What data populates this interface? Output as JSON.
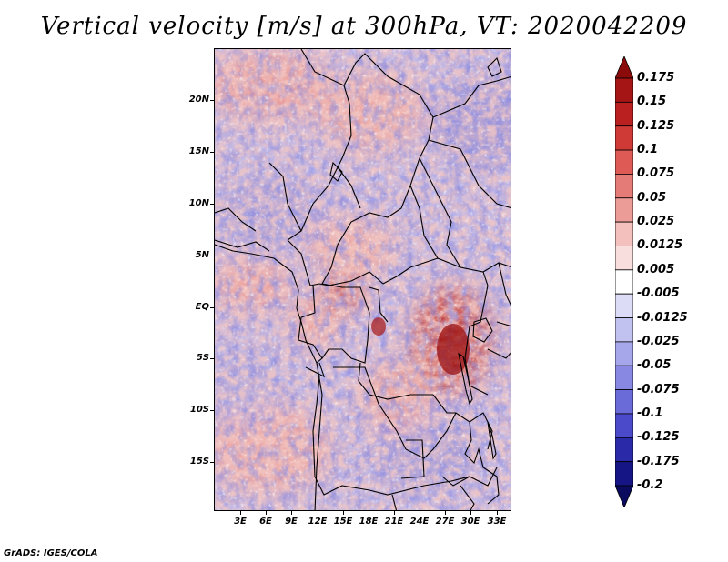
{
  "title": "Vertical velocity [m/s] at 300hPa, VT: 2020042209",
  "footer": "GrADS: IGES/COLA",
  "lat_labels": [
    "20N",
    "15N",
    "10N",
    "5N",
    "EQ",
    "5S",
    "10S",
    "15S"
  ],
  "lon_labels": [
    "3E",
    "6E",
    "9E",
    "12E",
    "15E",
    "18E",
    "21E",
    "24E",
    "27E",
    "30E",
    "33E"
  ],
  "colorbar": {
    "labels": [
      "0.175",
      "0.15",
      "0.125",
      "0.1",
      "0.075",
      "0.05",
      "0.025",
      "0.0125",
      "0.005",
      "-0.005",
      "-0.0125",
      "-0.025",
      "-0.05",
      "-0.075",
      "-0.1",
      "-0.125",
      "-0.175",
      "-0.2"
    ],
    "colors": [
      "#8b0a0a",
      "#a51515",
      "#bb2020",
      "#cf3a36",
      "#de5a55",
      "#e57b76",
      "#ec9c97",
      "#f3c0bd",
      "#f8dfdd",
      "#ffffff",
      "#dcdcf6",
      "#c2c2f1",
      "#a6a6ea",
      "#8888e2",
      "#6a6ad8",
      "#4a4acb",
      "#2a2aa8",
      "#151585",
      "#0a0a5e"
    ]
  }
}
